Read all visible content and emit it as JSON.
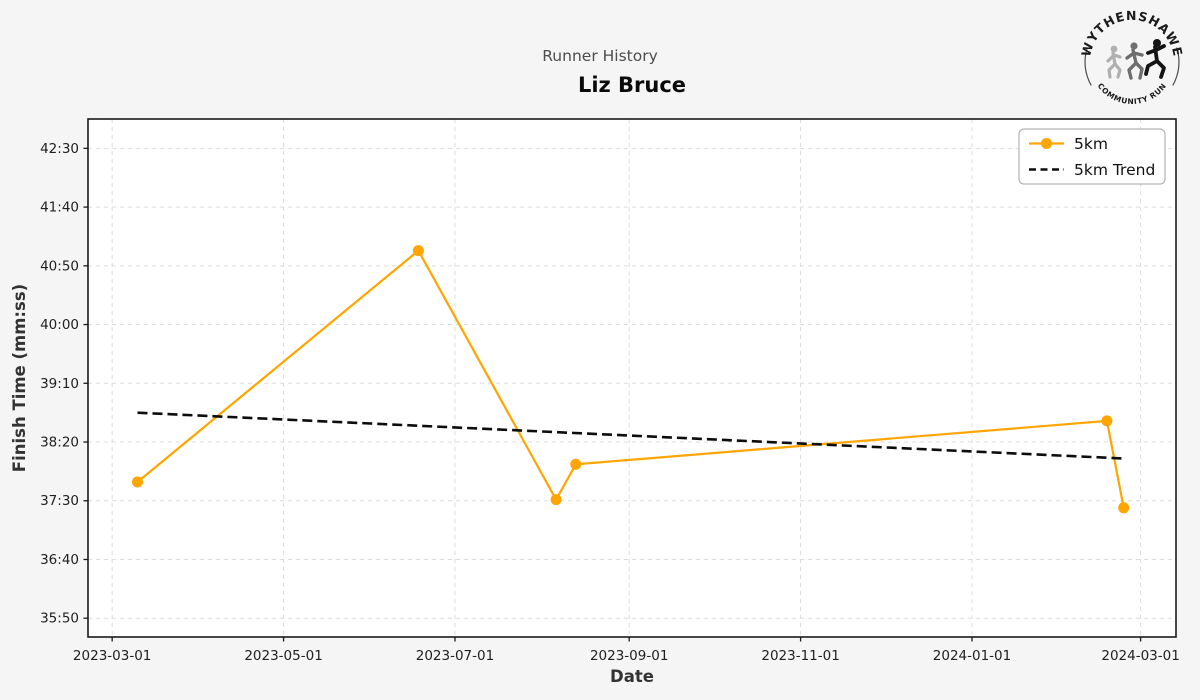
{
  "header": {
    "title": "Runner History",
    "runner_name": "Liz Bruce"
  },
  "logo": {
    "top_text": "WYTHENSHAWE",
    "bottom_text": "COMMUNITY RUN"
  },
  "colors": {
    "figure_background": "#f5f5f5",
    "plot_background": "#ffffff",
    "grid": "#dcdcdc",
    "spine": "#1a1a1a",
    "accent_orange": "#FFA500",
    "trend_black": "#0d0d0d",
    "legend_border": "#b3b3b3"
  },
  "chart_data": {
    "type": "line",
    "title": "Runner History",
    "subtitle": "Liz Bruce",
    "xlabel": "Date",
    "ylabel": "Finish Time (mm:ss)",
    "grid": true,
    "legend_position": "upper right",
    "x_unit": "days since 2023-03-01",
    "xlim_days": [
      -8.6,
      378.6
    ],
    "ylim_seconds": [
      2134,
      2575
    ],
    "x_ticks": [
      {
        "day": 0,
        "label": "2023-03-01"
      },
      {
        "day": 61,
        "label": "2023-05-01"
      },
      {
        "day": 122,
        "label": "2023-07-01"
      },
      {
        "day": 184,
        "label": "2023-09-01"
      },
      {
        "day": 245,
        "label": "2023-11-01"
      },
      {
        "day": 306,
        "label": "2024-01-01"
      },
      {
        "day": 366,
        "label": "2024-03-01"
      }
    ],
    "y_ticks": [
      {
        "seconds": 2150,
        "label": "35:50"
      },
      {
        "seconds": 2200,
        "label": "36:40"
      },
      {
        "seconds": 2250,
        "label": "37:30"
      },
      {
        "seconds": 2300,
        "label": "38:20"
      },
      {
        "seconds": 2350,
        "label": "39:10"
      },
      {
        "seconds": 2400,
        "label": "40:00"
      },
      {
        "seconds": 2450,
        "label": "40:50"
      },
      {
        "seconds": 2500,
        "label": "41:40"
      },
      {
        "seconds": 2550,
        "label": "42:30"
      }
    ],
    "series": [
      {
        "name": "5km",
        "color": "#FFA500",
        "line_style": "solid",
        "marker": "circle",
        "points": [
          {
            "date": "2023-03-10",
            "day": 9,
            "seconds": 2266,
            "time": "37:46"
          },
          {
            "date": "2023-06-18",
            "day": 109,
            "seconds": 2463,
            "time": "41:03"
          },
          {
            "date": "2023-08-06",
            "day": 158,
            "seconds": 2251,
            "time": "37:31"
          },
          {
            "date": "2023-08-13",
            "day": 165,
            "seconds": 2281,
            "time": "38:01"
          },
          {
            "date": "2024-02-18",
            "day": 354,
            "seconds": 2318,
            "time": "38:38"
          },
          {
            "date": "2024-02-24",
            "day": 360,
            "seconds": 2244,
            "time": "37:24"
          }
        ]
      },
      {
        "name": "5km Trend",
        "color": "#0d0d0d",
        "line_style": "dashed",
        "marker": "none",
        "points": [
          {
            "date": "2023-03-10",
            "day": 9,
            "seconds": 2325,
            "time": "38:45"
          },
          {
            "date": "2024-02-24",
            "day": 360,
            "seconds": 2286,
            "time": "38:06"
          }
        ]
      }
    ]
  }
}
